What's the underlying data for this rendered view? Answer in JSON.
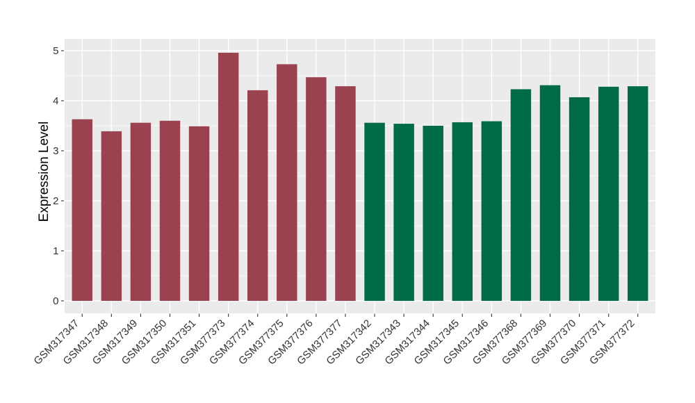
{
  "chart_data": {
    "type": "bar",
    "title": "",
    "xlabel": "",
    "ylabel": "Expression Level",
    "ylim": [
      0,
      5
    ],
    "yticks": [
      0,
      1,
      2,
      3,
      4,
      5
    ],
    "minor_yticks": [
      0.5,
      1.5,
      2.5,
      3.5,
      4.5
    ],
    "grid": "on",
    "legend_position": "none",
    "panel_background": "#EBEBEB",
    "grid_color": "#FFFFFF",
    "tick_color": "#333333",
    "tick_label_color": "#333333",
    "group_colors": {
      "left-group": "#9A4250",
      "right-group": "#006B47"
    },
    "categories": [
      "GSM317347",
      "GSM317348",
      "GSM317349",
      "GSM317350",
      "GSM317351",
      "GSM377373",
      "GSM377374",
      "GSM377375",
      "GSM377376",
      "GSM377377",
      "GSM317342",
      "GSM317343",
      "GSM317344",
      "GSM317345",
      "GSM317346",
      "GSM377368",
      "GSM377369",
      "GSM377370",
      "GSM377371",
      "GSM377372"
    ],
    "bars": [
      {
        "label": "GSM317347",
        "value": 3.63,
        "color": "#9A4250"
      },
      {
        "label": "GSM317348",
        "value": 3.39,
        "color": "#9A4250"
      },
      {
        "label": "GSM317349",
        "value": 3.56,
        "color": "#9A4250"
      },
      {
        "label": "GSM317350",
        "value": 3.6,
        "color": "#9A4250"
      },
      {
        "label": "GSM317351",
        "value": 3.49,
        "color": "#9A4250"
      },
      {
        "label": "GSM377373",
        "value": 4.96,
        "color": "#9A4250"
      },
      {
        "label": "GSM377374",
        "value": 4.21,
        "color": "#9A4250"
      },
      {
        "label": "GSM377375",
        "value": 4.73,
        "color": "#9A4250"
      },
      {
        "label": "GSM377376",
        "value": 4.47,
        "color": "#9A4250"
      },
      {
        "label": "GSM377377",
        "value": 4.29,
        "color": "#9A4250"
      },
      {
        "label": "GSM317342",
        "value": 3.56,
        "color": "#006B47"
      },
      {
        "label": "GSM317343",
        "value": 3.54,
        "color": "#006B47"
      },
      {
        "label": "GSM317344",
        "value": 3.5,
        "color": "#006B47"
      },
      {
        "label": "GSM317345",
        "value": 3.57,
        "color": "#006B47"
      },
      {
        "label": "GSM317346",
        "value": 3.59,
        "color": "#006B47"
      },
      {
        "label": "GSM377368",
        "value": 4.23,
        "color": "#006B47"
      },
      {
        "label": "GSM377369",
        "value": 4.31,
        "color": "#006B47"
      },
      {
        "label": "GSM377370",
        "value": 4.07,
        "color": "#006B47"
      },
      {
        "label": "GSM377371",
        "value": 4.28,
        "color": "#006B47"
      },
      {
        "label": "GSM377372",
        "value": 4.29,
        "color": "#006B47"
      }
    ]
  }
}
